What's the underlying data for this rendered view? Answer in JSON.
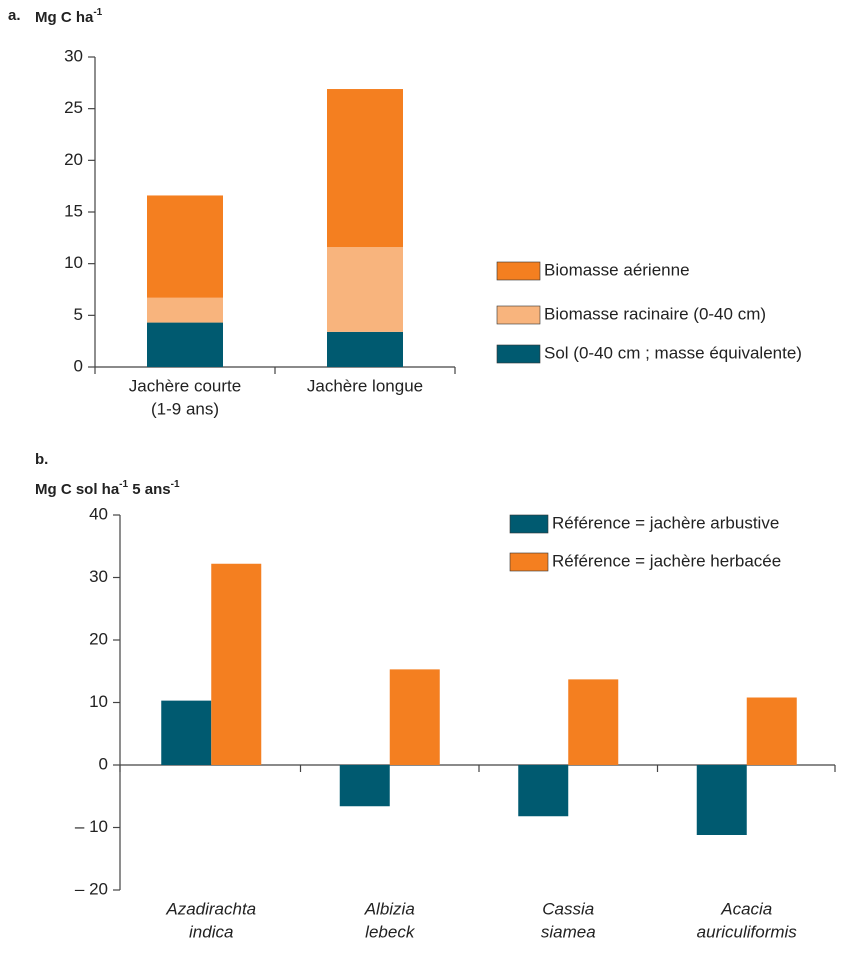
{
  "chart_data": [
    {
      "type": "stacked_bar",
      "panel": "a.",
      "y_label": [
        {
          "text": "Mg C ha"
        },
        {
          "text": "-1",
          "sup": true
        }
      ],
      "categories": [
        [
          "Jachère courte",
          "(1-9 ans)"
        ],
        [
          "Jachère longue"
        ]
      ],
      "series": [
        {
          "name": "Sol (0-40 cm ; masse équivalente)",
          "color": "#005a70",
          "values": [
            4.3,
            3.4
          ]
        },
        {
          "name": "Biomasse racinaire (0-40 cm)",
          "color": "#f8b47d",
          "values": [
            2.4,
            8.2
          ]
        },
        {
          "name": "Biomasse aérienne",
          "color": "#f47f20",
          "values": [
            9.9,
            15.3
          ]
        }
      ],
      "ylim": [
        0,
        30
      ],
      "yticks": [
        0,
        5,
        10,
        15,
        20,
        25,
        30
      ]
    },
    {
      "type": "grouped_bar",
      "panel": "b.",
      "y_label": [
        {
          "text": "Mg C sol ha"
        },
        {
          "text": "-1",
          "sup": true
        },
        {
          "text": " 5 ans"
        },
        {
          "text": "-1",
          "sup": true
        }
      ],
      "categories": [
        [
          "Azadirachta",
          "indica"
        ],
        [
          "Albizia",
          "lebeck"
        ],
        [
          "Cassia",
          "siamea"
        ],
        [
          "Acacia",
          "auriculiformis"
        ]
      ],
      "series": [
        {
          "name": "Référence = jachère arbustive",
          "color": "#005a70",
          "values": [
            10.3,
            -6.6,
            -8.2,
            -11.2
          ]
        },
        {
          "name": "Référence = jachère herbacée",
          "color": "#f47f20",
          "values": [
            32.2,
            15.3,
            13.7,
            10.8
          ]
        }
      ],
      "ylim": [
        -20,
        40
      ],
      "yticks": [
        {
          "value": -20,
          "label": "– 20"
        },
        {
          "value": -10,
          "label": "– 10"
        },
        0,
        10,
        20,
        30,
        40
      ]
    }
  ]
}
